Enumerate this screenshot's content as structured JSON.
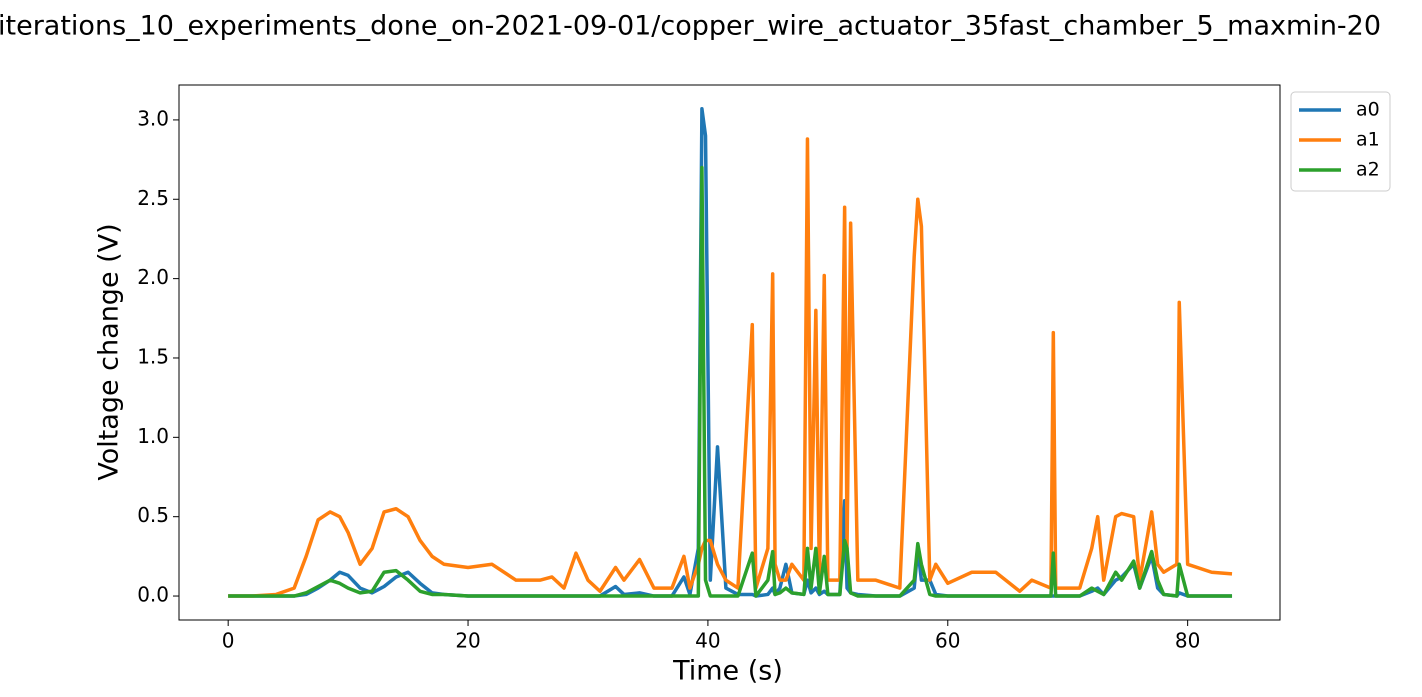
{
  "chart_data": {
    "type": "line",
    "title": "iterations_10_experiments_done_on-2021-09-01/copper_wire_actuator_35fast_chamber_5_maxmin-20",
    "x_label": "Time (s)",
    "y_label": "Voltage change (V)",
    "x": [
      0,
      2,
      4,
      5.5,
      6.5,
      7.5,
      8.5,
      9.3,
      10,
      11,
      12,
      13,
      14,
      15,
      16,
      17,
      18,
      20,
      22,
      24,
      26,
      27,
      28,
      29,
      30,
      31,
      32.3,
      33,
      34.3,
      35.5,
      37,
      38,
      38.5,
      39.2,
      39.5,
      39.8,
      40.2,
      40.8,
      41.5,
      42.5,
      43.7,
      44,
      45,
      45.4,
      45.6,
      46,
      46.5,
      47,
      48,
      48.3,
      48.6,
      49,
      49.3,
      49.7,
      50,
      51,
      51.4,
      51.6,
      51.9,
      52.5,
      54,
      56,
      57.2,
      57.5,
      57.8,
      58.5,
      59,
      60,
      62,
      64,
      66,
      67,
      68.6,
      68.8,
      69,
      71,
      72,
      72.5,
      73,
      74,
      74.5,
      75.5,
      76,
      77,
      77.5,
      78,
      79.1,
      79.3,
      80,
      82,
      83.7
    ],
    "series": [
      {
        "name": "a0",
        "color": "#1f77b4",
        "values": [
          0,
          0,
          0,
          0,
          0.01,
          0.05,
          0.1,
          0.15,
          0.13,
          0.05,
          0.02,
          0.06,
          0.12,
          0.15,
          0.08,
          0.02,
          0.01,
          0,
          0,
          0,
          0,
          0,
          0,
          0,
          0,
          0,
          0.06,
          0.01,
          0.02,
          0,
          0,
          0.12,
          0.01,
          0.3,
          3.07,
          2.9,
          0.1,
          0.94,
          0.05,
          0.01,
          0.01,
          0,
          0.01,
          0.05,
          0.01,
          0.05,
          0.2,
          0.02,
          0.01,
          0.1,
          0.02,
          0.05,
          0.01,
          0.03,
          0.01,
          0.01,
          0.6,
          0.05,
          0.02,
          0.01,
          0,
          0,
          0.05,
          0.3,
          0.1,
          0.1,
          0.01,
          0,
          0,
          0,
          0,
          0,
          0,
          0,
          0,
          0,
          0.03,
          0.05,
          0.01,
          0.1,
          0.12,
          0.2,
          0.05,
          0.25,
          0.05,
          0.01,
          0,
          0.02,
          0,
          0,
          0
        ]
      },
      {
        "name": "a1",
        "color": "#ff7f0e",
        "values": [
          0,
          0,
          0.01,
          0.05,
          0.25,
          0.48,
          0.53,
          0.5,
          0.4,
          0.2,
          0.3,
          0.53,
          0.55,
          0.5,
          0.35,
          0.25,
          0.2,
          0.18,
          0.2,
          0.1,
          0.1,
          0.12,
          0.05,
          0.27,
          0.1,
          0.03,
          0.18,
          0.1,
          0.23,
          0.05,
          0.05,
          0.25,
          0.05,
          0.2,
          0.3,
          0.35,
          0.35,
          0.2,
          0.1,
          0.05,
          1.71,
          0.05,
          0.3,
          2.03,
          0.2,
          0.1,
          0.1,
          0.2,
          0.1,
          2.88,
          0.3,
          1.8,
          0.1,
          2.02,
          0.1,
          0.1,
          2.45,
          0.3,
          2.35,
          0.1,
          0.1,
          0.05,
          2.14,
          2.5,
          2.33,
          0.1,
          0.2,
          0.08,
          0.15,
          0.15,
          0.03,
          0.1,
          0.05,
          1.66,
          0.05,
          0.05,
          0.3,
          0.5,
          0.1,
          0.5,
          0.52,
          0.5,
          0.1,
          0.53,
          0.2,
          0.15,
          0.2,
          1.85,
          0.2,
          0.15,
          0.14
        ]
      },
      {
        "name": "a2",
        "color": "#2ca02c",
        "values": [
          0,
          0,
          0,
          0,
          0.02,
          0.06,
          0.1,
          0.08,
          0.05,
          0.02,
          0.03,
          0.15,
          0.16,
          0.1,
          0.03,
          0.01,
          0.01,
          0,
          0,
          0,
          0,
          0,
          0,
          0,
          0,
          0,
          0,
          0,
          0,
          0,
          0,
          0,
          0,
          0,
          2.7,
          0.1,
          0,
          0,
          0,
          0,
          0.27,
          0,
          0.1,
          0.28,
          0.01,
          0.02,
          0.05,
          0.02,
          0.01,
          0.3,
          0.05,
          0.3,
          0.02,
          0.25,
          0.01,
          0.01,
          0.35,
          0.3,
          0.02,
          0,
          0,
          0,
          0.1,
          0.33,
          0.2,
          0.01,
          0,
          0,
          0,
          0,
          0,
          0,
          0,
          0.27,
          0,
          0,
          0.05,
          0.03,
          0.01,
          0.15,
          0.1,
          0.22,
          0.05,
          0.28,
          0.1,
          0.01,
          0,
          0.2,
          0,
          0,
          0
        ]
      }
    ],
    "xlim": [
      -4.1,
      87.7
    ],
    "xticks": [
      0,
      20,
      40,
      60,
      80
    ],
    "ylim": [
      -0.151,
      3.22
    ],
    "yticks": [
      {
        "value": 0,
        "label": "0.0"
      },
      {
        "value": 0.5,
        "label": "0.5"
      },
      {
        "value": 1,
        "label": "1.0"
      },
      {
        "value": 1.5,
        "label": "1.5"
      },
      {
        "value": 2,
        "label": "2.0"
      },
      {
        "value": 2.5,
        "label": "2.5"
      },
      {
        "value": 3,
        "label": "3.0"
      }
    ],
    "legend": "outside-upper-right"
  }
}
